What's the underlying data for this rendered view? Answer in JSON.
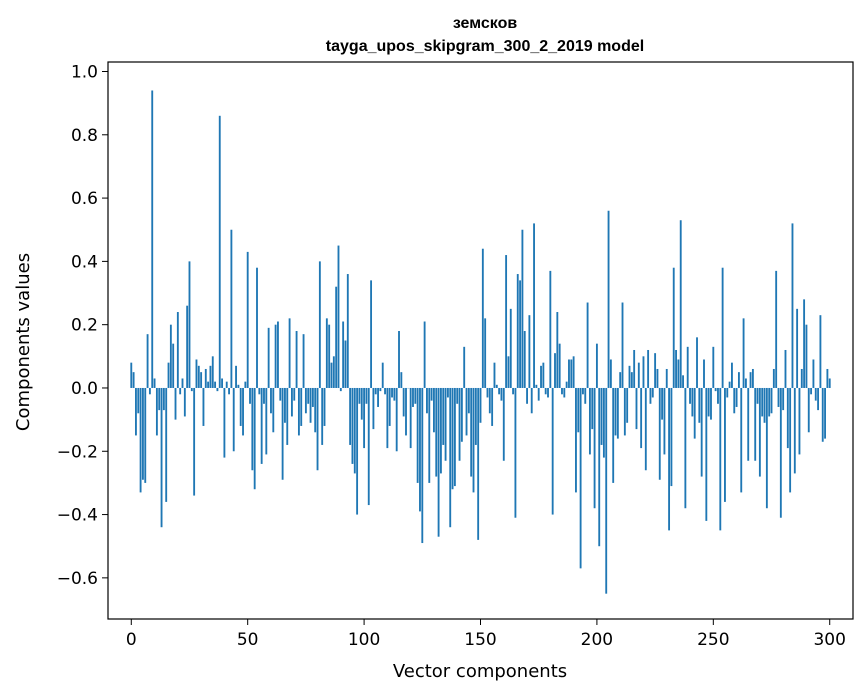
{
  "chart_data": {
    "type": "bar",
    "title_line1": "земсков",
    "title_line2": "tayga_upos_skipgram_300_2_2019 model",
    "xlabel": "Vector components",
    "ylabel": "Components values",
    "xlim": [
      -10,
      310
    ],
    "ylim": [
      -0.73,
      1.03
    ],
    "x_ticks": [
      0,
      50,
      100,
      150,
      200,
      250,
      300
    ],
    "x_tick_labels": [
      "0",
      "50",
      "100",
      "150",
      "200",
      "250",
      "300"
    ],
    "y_ticks": [
      -0.6,
      -0.4,
      -0.2,
      0.0,
      0.2,
      0.4,
      0.6,
      0.8,
      1.0
    ],
    "y_tick_labels": [
      "−0.6",
      "−0.4",
      "−0.2",
      "0.0",
      "0.2",
      "0.4",
      "0.6",
      "0.8",
      "1.0"
    ],
    "bar_color": "#1f77b4",
    "grid": false,
    "values": [
      0.08,
      0.05,
      -0.15,
      -0.08,
      -0.33,
      -0.29,
      -0.3,
      0.17,
      -0.02,
      0.94,
      0.03,
      -0.15,
      -0.07,
      -0.44,
      -0.07,
      -0.36,
      0.08,
      0.2,
      0.14,
      -0.1,
      0.24,
      -0.02,
      0.03,
      -0.09,
      0.26,
      0.4,
      -0.01,
      -0.34,
      0.09,
      0.07,
      0.05,
      -0.12,
      0.06,
      0.02,
      0.07,
      0.1,
      0.02,
      -0.01,
      0.86,
      0.03,
      -0.22,
      0.02,
      -0.02,
      0.5,
      -0.2,
      0.07,
      0.01,
      -0.12,
      -0.15,
      0.02,
      0.43,
      -0.05,
      -0.26,
      -0.32,
      0.38,
      -0.02,
      -0.24,
      -0.05,
      -0.21,
      0.19,
      -0.08,
      -0.14,
      0.2,
      0.21,
      -0.04,
      -0.29,
      -0.11,
      -0.18,
      0.22,
      -0.09,
      -0.04,
      0.18,
      -0.15,
      -0.12,
      0.17,
      -0.08,
      -0.05,
      -0.11,
      -0.06,
      -0.14,
      -0.26,
      0.4,
      -0.18,
      -0.12,
      0.22,
      0.2,
      0.08,
      0.1,
      0.32,
      0.45,
      -0.01,
      0.21,
      0.15,
      0.36,
      -0.18,
      -0.24,
      -0.27,
      -0.4,
      -0.05,
      -0.1,
      -0.19,
      -0.05,
      -0.37,
      0.34,
      -0.13,
      -0.02,
      -0.06,
      -0.01,
      0.08,
      -0.02,
      -0.19,
      -0.12,
      -0.03,
      -0.04,
      -0.2,
      0.18,
      0.05,
      -0.09,
      -0.15,
      0.0,
      -0.19,
      -0.06,
      -0.05,
      -0.3,
      -0.39,
      -0.49,
      0.21,
      -0.08,
      -0.3,
      -0.04,
      -0.14,
      -0.28,
      -0.47,
      -0.27,
      -0.18,
      -0.23,
      -0.03,
      -0.44,
      -0.32,
      -0.31,
      -0.05,
      -0.23,
      -0.17,
      0.13,
      -0.15,
      -0.08,
      -0.28,
      -0.33,
      -0.18,
      -0.48,
      -0.11,
      0.44,
      0.22,
      -0.03,
      -0.08,
      -0.12,
      0.08,
      0.01,
      -0.02,
      -0.04,
      -0.23,
      0.42,
      0.1,
      0.25,
      -0.02,
      -0.41,
      0.36,
      0.34,
      0.5,
      0.18,
      -0.05,
      0.23,
      -0.08,
      0.52,
      0.01,
      -0.04,
      0.07,
      0.08,
      -0.02,
      -0.03,
      0.37,
      -0.4,
      0.11,
      0.24,
      0.14,
      -0.02,
      -0.03,
      0.02,
      0.09,
      0.09,
      0.1,
      -0.33,
      -0.14,
      -0.57,
      -0.02,
      -0.05,
      0.27,
      -0.21,
      -0.13,
      -0.38,
      0.14,
      -0.5,
      -0.18,
      -0.22,
      -0.65,
      0.56,
      0.09,
      -0.3,
      -0.15,
      -0.16,
      0.05,
      0.27,
      -0.15,
      -0.11,
      0.07,
      0.05,
      0.12,
      -0.13,
      0.08,
      -0.19,
      0.1,
      -0.26,
      0.12,
      -0.05,
      -0.03,
      0.11,
      0.06,
      -0.29,
      -0.1,
      -0.21,
      0.06,
      -0.45,
      -0.31,
      0.38,
      0.12,
      0.09,
      0.53,
      0.04,
      -0.38,
      0.13,
      -0.05,
      -0.09,
      -0.16,
      0.16,
      -0.11,
      -0.28,
      0.09,
      -0.42,
      -0.09,
      -0.1,
      0.13,
      -0.01,
      -0.05,
      -0.45,
      0.38,
      -0.36,
      -0.03,
      0.02,
      0.08,
      -0.08,
      -0.06,
      0.05,
      -0.33,
      0.22,
      0.03,
      -0.23,
      0.05,
      0.06,
      -0.23,
      -0.05,
      -0.28,
      -0.09,
      -0.11,
      -0.38,
      -0.09,
      -0.08,
      0.06,
      0.37,
      -0.06,
      -0.41,
      -0.07,
      0.12,
      -0.19,
      -0.33,
      0.52,
      -0.27,
      0.25,
      -0.21,
      0.06,
      0.28,
      0.2,
      -0.14,
      -0.02,
      0.09,
      -0.04,
      -0.07,
      0.23,
      -0.17,
      -0.16,
      0.06,
      0.03
    ]
  }
}
